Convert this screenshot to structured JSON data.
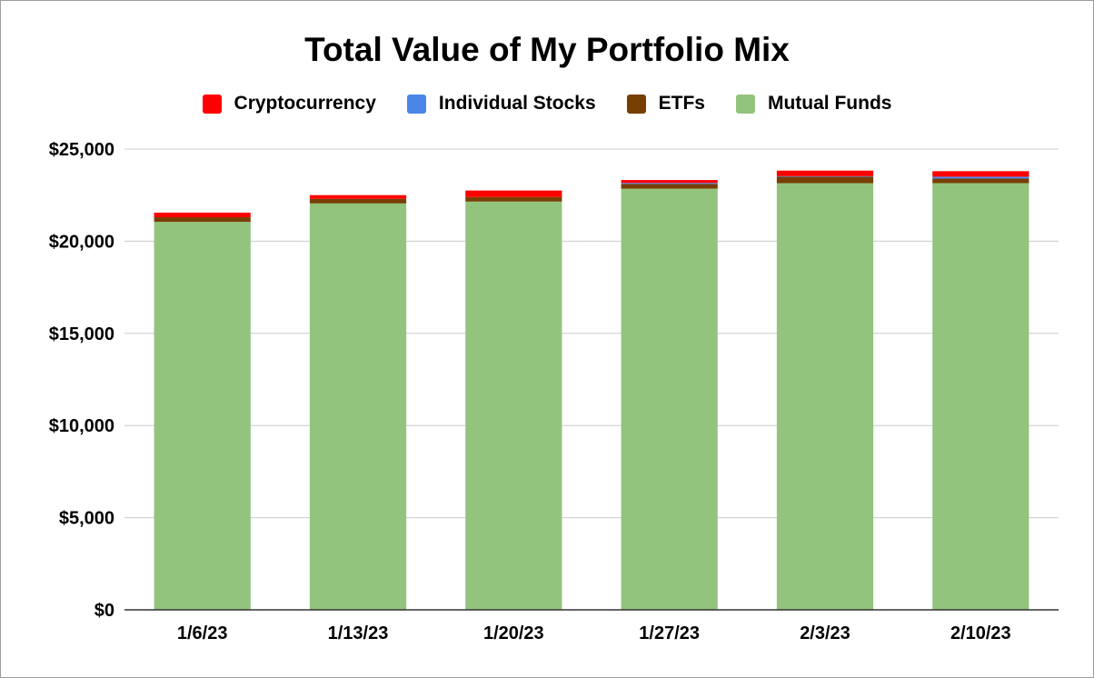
{
  "chart_data": {
    "type": "bar",
    "stacked": true,
    "title": "Total Value of My Portfolio Mix",
    "xlabel": "",
    "ylabel": "",
    "categories": [
      "1/6/23",
      "1/13/23",
      "1/20/23",
      "1/27/23",
      "2/3/23",
      "2/10/23"
    ],
    "ylim": [
      0,
      25000
    ],
    "yticks": [
      0,
      5000,
      10000,
      15000,
      20000,
      25000
    ],
    "ytick_labels": [
      "$0",
      "$5,000",
      "$10,000",
      "$15,000",
      "$20,000",
      "$25,000"
    ],
    "grid": true,
    "legend_position": "top",
    "series": [
      {
        "name": "Mutual Funds",
        "color": "#93c47d",
        "values": [
          21050,
          22050,
          22150,
          22850,
          23150,
          23150
        ]
      },
      {
        "name": "ETFs",
        "color": "#783f04",
        "values": [
          250,
          250,
          250,
          250,
          350,
          250
        ]
      },
      {
        "name": "Individual Stocks",
        "color": "#4a86e8",
        "values": [
          0,
          0,
          0,
          60,
          30,
          100
        ]
      },
      {
        "name": "Cryptocurrency",
        "color": "#ff0000",
        "values": [
          250,
          200,
          350,
          160,
          300,
          300
        ]
      }
    ],
    "legend_order": [
      "Cryptocurrency",
      "Individual Stocks",
      "ETFs",
      "Mutual Funds"
    ]
  }
}
